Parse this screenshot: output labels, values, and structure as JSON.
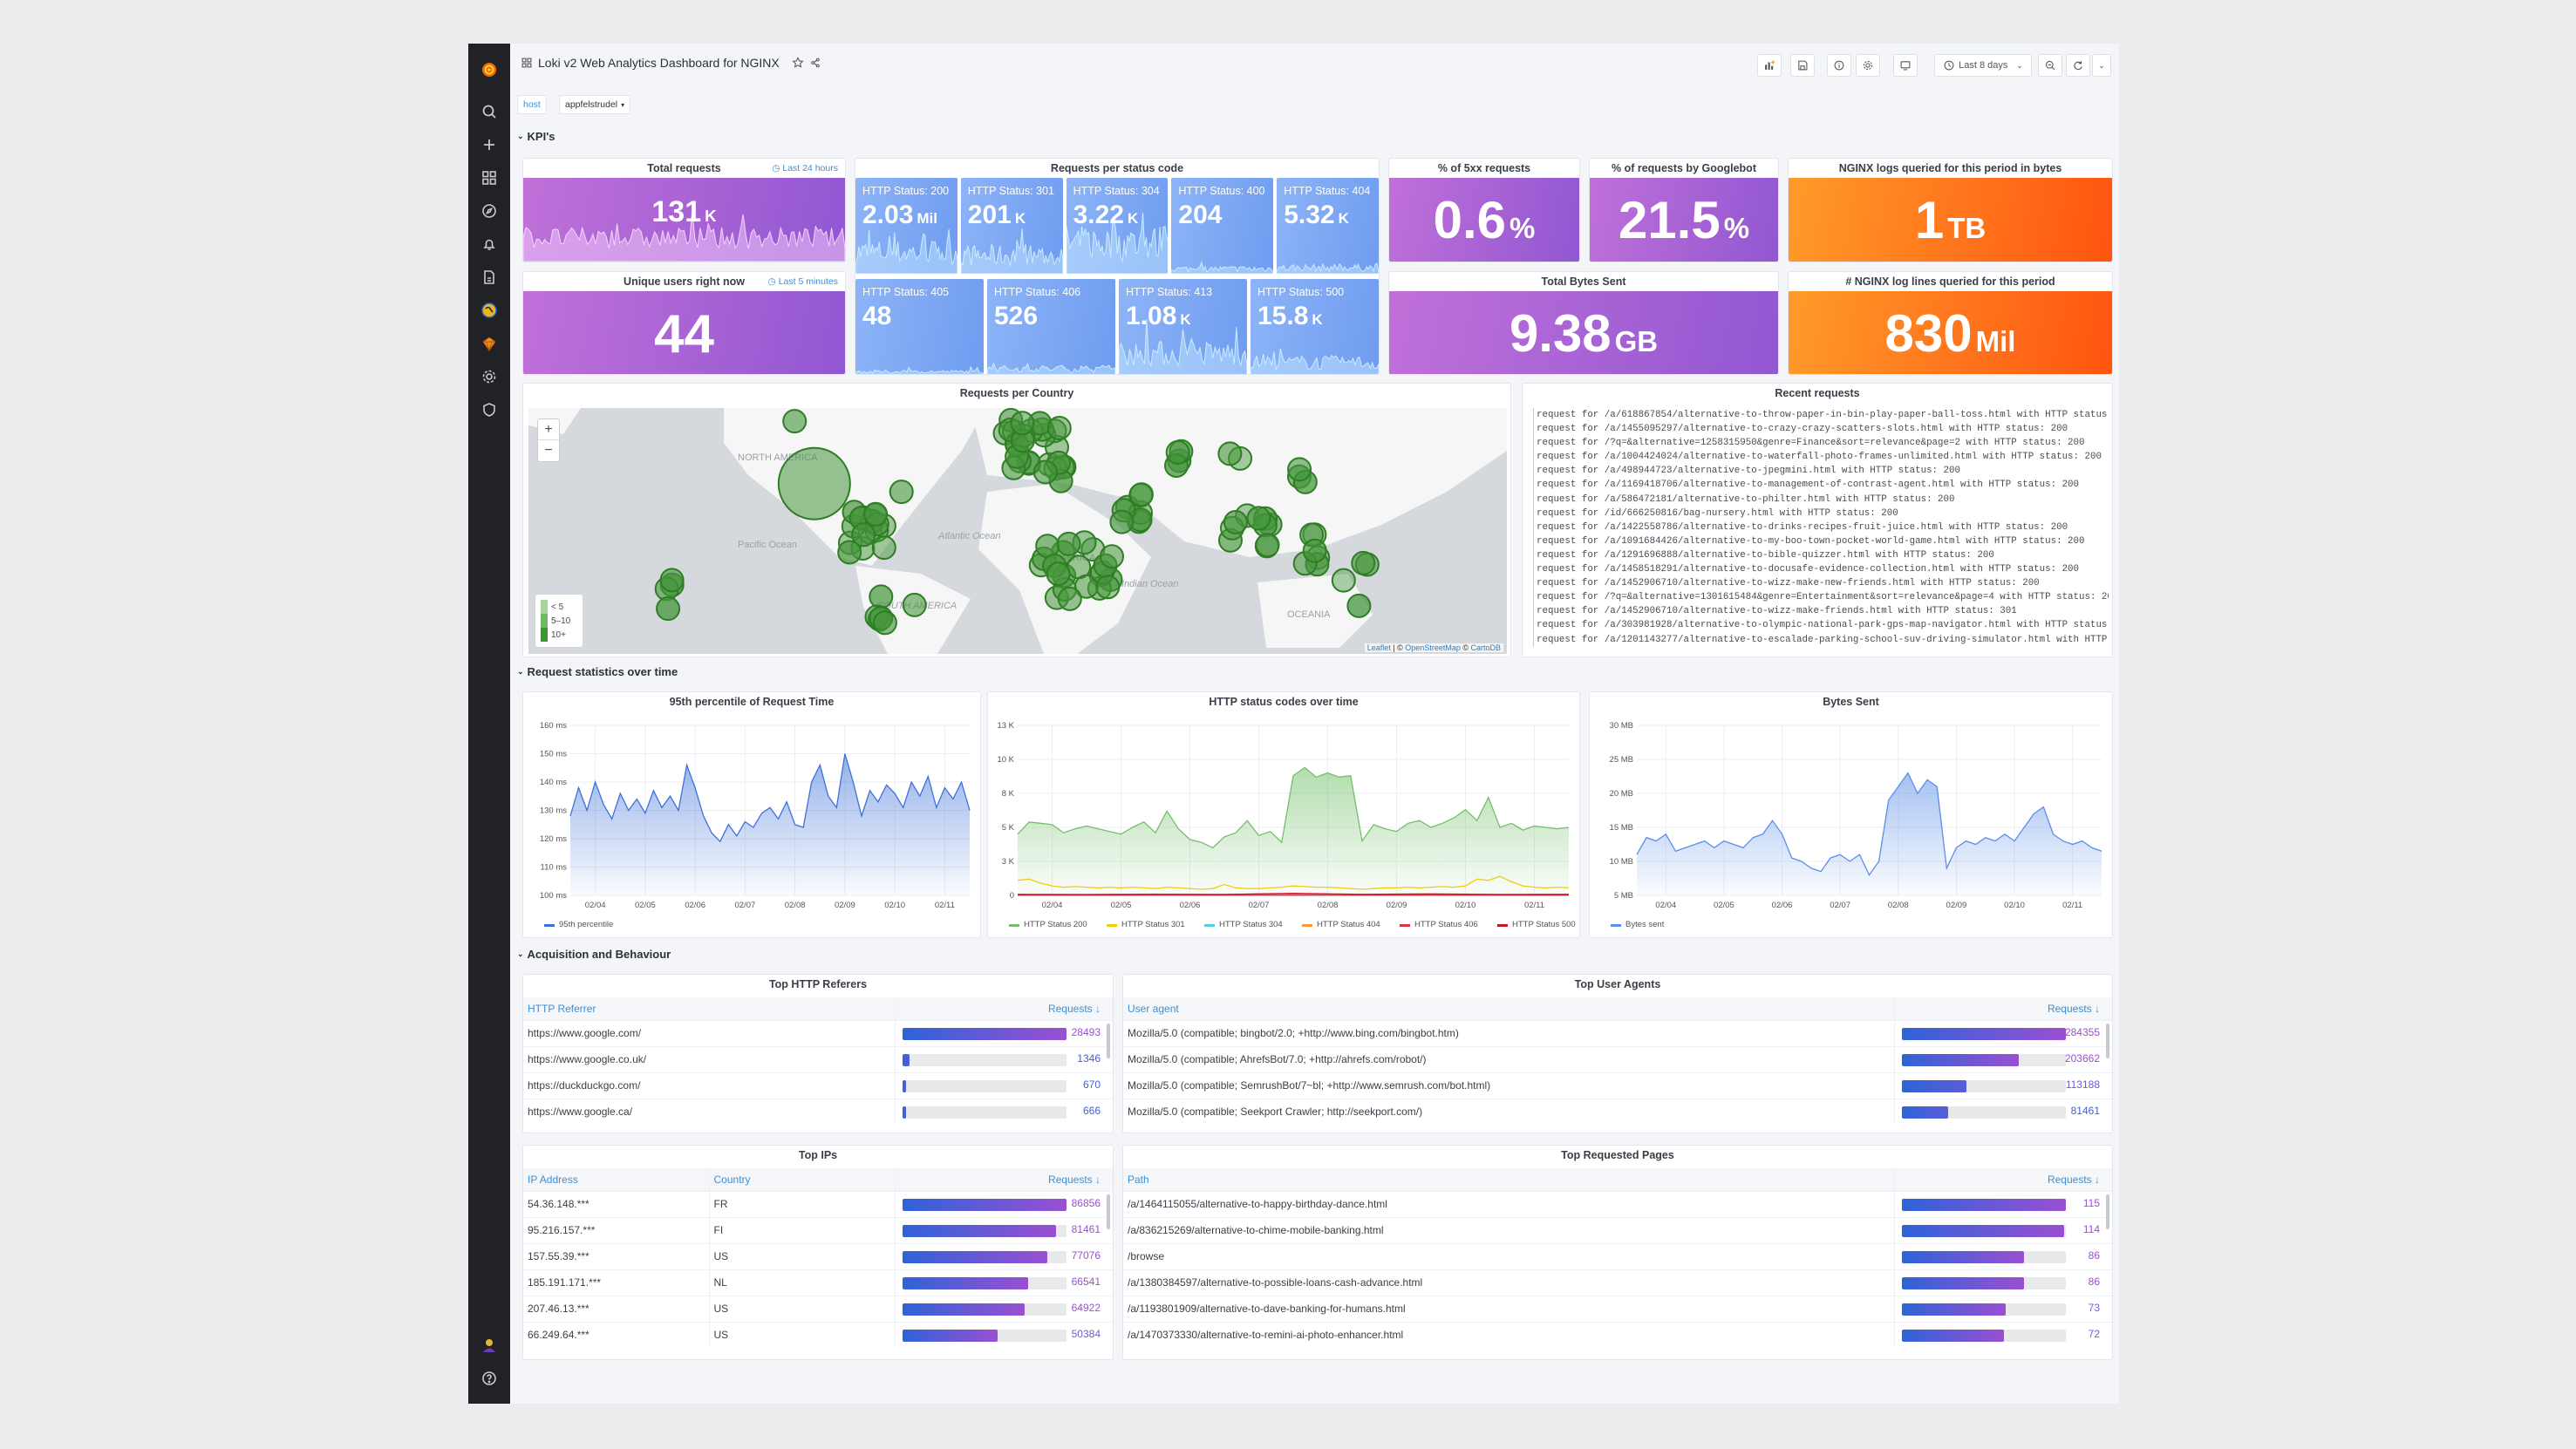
{
  "header": {
    "title": "Loki v2 Web Analytics Dashboard for NGINX",
    "time_range": "Last 8 days"
  },
  "variables": {
    "label": "host",
    "value": "appfelstrudel"
  },
  "sections": {
    "kpis": "KPI's",
    "stats": "Request statistics over time",
    "acquisition": "Acquisition and Behaviour"
  },
  "kpis": {
    "total_requests": {
      "title": "Total requests",
      "info": "Last 24 hours",
      "value": "131",
      "unit": "K"
    },
    "unique_users": {
      "title": "Unique users right now",
      "info": "Last 5 minutes",
      "value": "44",
      "unit": ""
    },
    "status_panel_title": "Requests per status code",
    "status_codes": [
      {
        "label": "HTTP Status: 200",
        "value": "2.03",
        "unit": "Mil"
      },
      {
        "label": "HTTP Status: 301",
        "value": "201",
        "unit": "K"
      },
      {
        "label": "HTTP Status: 304",
        "value": "3.22",
        "unit": "K"
      },
      {
        "label": "HTTP Status: 400",
        "value": "204",
        "unit": ""
      },
      {
        "label": "HTTP Status: 404",
        "value": "5.32",
        "unit": "K"
      },
      {
        "label": "HTTP Status: 405",
        "value": "48",
        "unit": ""
      },
      {
        "label": "HTTP Status: 406",
        "value": "526",
        "unit": ""
      },
      {
        "label": "HTTP Status: 413",
        "value": "1.08",
        "unit": "K"
      },
      {
        "label": "HTTP Status: 500",
        "value": "15.8",
        "unit": "K"
      }
    ],
    "pct_5xx": {
      "title": "% of 5xx requests",
      "value": "0.6",
      "unit": "%"
    },
    "pct_googlebot": {
      "title": "% of requests by Googlebot",
      "value": "21.5",
      "unit": "%"
    },
    "log_bytes": {
      "title": "NGINX logs queried for this period in bytes",
      "value": "1",
      "unit": "TB"
    },
    "bytes_sent": {
      "title": "Total Bytes Sent",
      "value": "9.38",
      "unit": "GB"
    },
    "log_lines": {
      "title": "# NGINX log lines queried for this period",
      "value": "830",
      "unit": "Mil"
    }
  },
  "colors": {
    "purple_start": "#c070d8",
    "purple_end": "#9157d2",
    "orange_start": "#ff9b2a",
    "orange_end": "#ff5410",
    "blue": "#7aa6f4",
    "map_marker": "#37872d"
  },
  "map": {
    "title": "Requests per Country",
    "zoom_in": "+",
    "zoom_out": "−",
    "labels": [
      "NORTH AMERICA",
      "Atlantic Ocean",
      "Pacific Ocean",
      "SOUTH AMERICA",
      "AFRICA",
      "Indian Ocean",
      "OCEANIA"
    ],
    "legend": [
      "< 5",
      "5–10",
      "10+"
    ],
    "attribution": {
      "leaflet": "Leaflet",
      "sep": " | © ",
      "osm": "OpenStreetMap",
      "sep2": " © ",
      "carto": "CartoDB"
    }
  },
  "recent_requests": {
    "title": "Recent requests",
    "lines": [
      "request for /a/618867854/alternative-to-throw-paper-in-bin-play-paper-ball-toss.html with HTTP status: 200",
      "request for /a/1455095297/alternative-to-crazy-crazy-scatters-slots.html with HTTP status: 200",
      "request for /?q=&alternative=1258315950&genre=Finance&sort=relevance&page=2 with HTTP status: 200",
      "request for /a/1004424024/alternative-to-waterfall-photo-frames-unlimited.html with HTTP status: 200",
      "request for /a/498944723/alternative-to-jpegmini.html with HTTP status: 200",
      "request for /a/1169418706/alternative-to-management-of-contrast-agent.html with HTTP status: 200",
      "request for /a/586472181/alternative-to-philter.html with HTTP status: 200",
      "request for /id/666250816/bag-nursery.html with HTTP status: 200",
      "request for /a/1422558786/alternative-to-drinks-recipes-fruit-juice.html with HTTP status: 200",
      "request for /a/1091684426/alternative-to-my-boo-town-pocket-world-game.html with HTTP status: 200",
      "request for /a/1291696888/alternative-to-bible-quizzer.html with HTTP status: 200",
      "request for /a/1458518291/alternative-to-docusafe-evidence-collection.html with HTTP status: 200",
      "request for /a/1452906710/alternative-to-wizz-make-new-friends.html with HTTP status: 200",
      "request for /?q=&alternative=1301615484&genre=Entertainment&sort=relevance&page=4 with HTTP status: 200",
      "request for /a/1452906710/alternative-to-wizz-make-friends.html with HTTP status: 301",
      "request for /a/303981928/alternative-to-olympic-national-park-gps-map-navigator.html with HTTP status: 200",
      "request for /a/1201143277/alternative-to-escalade-parking-school-suv-driving-simulator.html with HTTP statu"
    ]
  },
  "chart_data": [
    {
      "type": "area",
      "title": "95th percentile of Request Time",
      "xlim": [
        "02/03 12:00",
        "02/11 12:00"
      ],
      "x_ticks": [
        "02/04",
        "02/05",
        "02/06",
        "02/07",
        "02/08",
        "02/09",
        "02/10",
        "02/11"
      ],
      "ylim": [
        100,
        160
      ],
      "y_tick_values": [
        100,
        110,
        120,
        130,
        140,
        150,
        160
      ],
      "y_ticks": [
        "100 ms",
        "110 ms",
        "120 ms",
        "130 ms",
        "140 ms",
        "150 ms",
        "160 ms"
      ],
      "grid": true,
      "legend": "bottom-left",
      "series": [
        {
          "name": "95th percentile",
          "color": "#3d71d9",
          "fill": true,
          "values": [
            128,
            138,
            130,
            140,
            132,
            127,
            136,
            130,
            134,
            129,
            137,
            131,
            135,
            130,
            146,
            138,
            128,
            122,
            119,
            125,
            121,
            126,
            124,
            129,
            131,
            127,
            133,
            125,
            124,
            140,
            146,
            135,
            131,
            150,
            140,
            128,
            137,
            133,
            139,
            136,
            131,
            140,
            135,
            142,
            131,
            138,
            134,
            140,
            130
          ]
        }
      ]
    },
    {
      "type": "area",
      "title": "HTTP status codes over time",
      "xlim": [
        "02/03 12:00",
        "02/11 12:00"
      ],
      "x_ticks": [
        "02/04",
        "02/05",
        "02/06",
        "02/07",
        "02/08",
        "02/09",
        "02/10",
        "02/11"
      ],
      "ylim": [
        0,
        12500
      ],
      "y_tick_values": [
        0,
        2500,
        5000,
        7500,
        10000,
        12500
      ],
      "y_ticks": [
        "0",
        "3 K",
        "5 K",
        "8 K",
        "10 K",
        "13 K"
      ],
      "grid": true,
      "legend": "bottom-left",
      "series": [
        {
          "name": "HTTP Status 200",
          "color": "#73bf69",
          "fill": true,
          "values": [
            4500,
            5400,
            5300,
            5200,
            4600,
            4900,
            5100,
            4900,
            4700,
            4500,
            5000,
            5400,
            4600,
            6200,
            4900,
            4100,
            3900,
            3500,
            4300,
            4600,
            5500,
            4400,
            4700,
            3900,
            8800,
            9400,
            8700,
            9000,
            8700,
            8800,
            4000,
            5200,
            4900,
            4700,
            5300,
            5500,
            5000,
            5300,
            5700,
            6300,
            5500,
            7200,
            5000,
            5300,
            4800,
            5100,
            5000,
            4900,
            5000
          ]
        },
        {
          "name": "HTTP Status 301",
          "color": "#f2cc0c",
          "fill": false,
          "values": [
            1100,
            1200,
            900,
            700,
            600,
            650,
            600,
            550,
            600,
            550,
            600,
            550,
            500,
            600,
            550,
            500,
            450,
            500,
            800,
            550,
            500,
            500,
            550,
            600,
            700,
            650,
            600,
            600,
            550,
            500,
            450,
            500,
            550,
            550,
            600,
            550,
            600,
            650,
            600,
            700,
            1200,
            1100,
            1400,
            1000,
            700,
            600,
            550,
            600,
            550
          ]
        },
        {
          "name": "HTTP Status 304",
          "color": "#5cc8e8",
          "fill": false,
          "values": [
            20,
            30,
            25,
            20,
            30,
            25,
            20,
            30,
            25
          ]
        },
        {
          "name": "HTTP Status 404",
          "color": "#ff9830",
          "fill": false,
          "values": [
            60,
            80,
            50,
            70,
            120,
            60,
            90,
            50,
            60
          ]
        },
        {
          "name": "HTTP Status 406",
          "color": "#e02f44",
          "fill": false,
          "values": [
            10,
            5,
            10,
            5,
            10,
            5,
            10,
            5,
            10
          ]
        },
        {
          "name": "HTTP Status 500",
          "color": "#c4162a",
          "fill": false,
          "values": [
            80,
            60,
            90,
            70,
            150,
            80,
            110,
            70,
            80
          ]
        }
      ]
    },
    {
      "type": "area",
      "title": "Bytes Sent",
      "xlim": [
        "02/03 12:00",
        "02/11 12:00"
      ],
      "x_ticks": [
        "02/04",
        "02/05",
        "02/06",
        "02/07",
        "02/08",
        "02/09",
        "02/10",
        "02/11"
      ],
      "ylim": [
        5,
        30
      ],
      "y_tick_values": [
        5,
        10,
        15,
        20,
        25,
        30
      ],
      "y_ticks": [
        "5 MB",
        "10 MB",
        "15 MB",
        "20 MB",
        "25 MB",
        "30 MB"
      ],
      "grid": true,
      "legend": "bottom-left",
      "series": [
        {
          "name": "Bytes sent",
          "color": "#5a8ee8",
          "fill": true,
          "values": [
            11,
            13.5,
            13,
            14,
            11.5,
            12,
            12.5,
            13,
            12,
            13,
            12.5,
            12,
            13.5,
            14,
            16,
            14,
            10.5,
            10,
            9,
            8.5,
            10.5,
            11,
            10,
            11,
            8,
            10,
            19,
            21,
            23,
            20,
            22,
            21,
            9,
            12,
            13,
            12.5,
            13.5,
            13,
            14,
            13,
            15,
            17,
            18,
            14,
            13,
            12.5,
            13,
            12,
            11.5
          ]
        }
      ]
    }
  ],
  "tables": {
    "referers": {
      "title": "Top HTTP Referers",
      "columns": [
        "HTTP Referrer",
        "Requests ↓"
      ],
      "rows": [
        {
          "cells": [
            "https://www.google.com/"
          ],
          "value": 28493
        },
        {
          "cells": [
            "https://www.google.co.uk/"
          ],
          "value": 1346
        },
        {
          "cells": [
            "https://duckduckgo.com/"
          ],
          "value": 670
        },
        {
          "cells": [
            "https://www.google.ca/"
          ],
          "value": 666
        }
      ]
    },
    "user_agents": {
      "title": "Top User Agents",
      "columns": [
        "User agent",
        "Requests ↓"
      ],
      "rows": [
        {
          "cells": [
            "Mozilla/5.0 (compatible; bingbot/2.0; +http://www.bing.com/bingbot.htm)"
          ],
          "value": 284355
        },
        {
          "cells": [
            "Mozilla/5.0 (compatible; AhrefsBot/7.0; +http://ahrefs.com/robot/)"
          ],
          "value": 203662
        },
        {
          "cells": [
            "Mozilla/5.0 (compatible; SemrushBot/7~bl; +http://www.semrush.com/bot.html)"
          ],
          "value": 113188
        },
        {
          "cells": [
            "Mozilla/5.0 (compatible; Seekport Crawler; http://seekport.com/)"
          ],
          "value": 81461
        }
      ]
    },
    "ips": {
      "title": "Top IPs",
      "columns": [
        "IP Address",
        "Country",
        "Requests ↓"
      ],
      "rows": [
        {
          "cells": [
            "54.36.148.***",
            "FR"
          ],
          "value": 86856
        },
        {
          "cells": [
            "95.216.157.***",
            "FI"
          ],
          "value": 81461
        },
        {
          "cells": [
            "157.55.39.***",
            "US"
          ],
          "value": 77076
        },
        {
          "cells": [
            "185.191.171.***",
            "NL"
          ],
          "value": 66541
        },
        {
          "cells": [
            "207.46.13.***",
            "US"
          ],
          "value": 64922
        },
        {
          "cells": [
            "66.249.64.***",
            "US"
          ],
          "value": 50384
        }
      ]
    },
    "pages": {
      "title": "Top Requested Pages",
      "columns": [
        "Path",
        "Requests ↓"
      ],
      "rows": [
        {
          "cells": [
            "/a/1464115055/alternative-to-happy-birthday-dance.html"
          ],
          "value": 115
        },
        {
          "cells": [
            "/a/836215269/alternative-to-chime-mobile-banking.html"
          ],
          "value": 114
        },
        {
          "cells": [
            "/browse"
          ],
          "value": 86
        },
        {
          "cells": [
            "/a/1380384597/alternative-to-possible-loans-cash-advance.html"
          ],
          "value": 86
        },
        {
          "cells": [
            "/a/1193801909/alternative-to-dave-banking-for-humans.html"
          ],
          "value": 73
        },
        {
          "cells": [
            "/a/1470373330/alternative-to-remini-ai-photo-enhancer.html"
          ],
          "value": 72
        }
      ]
    }
  }
}
